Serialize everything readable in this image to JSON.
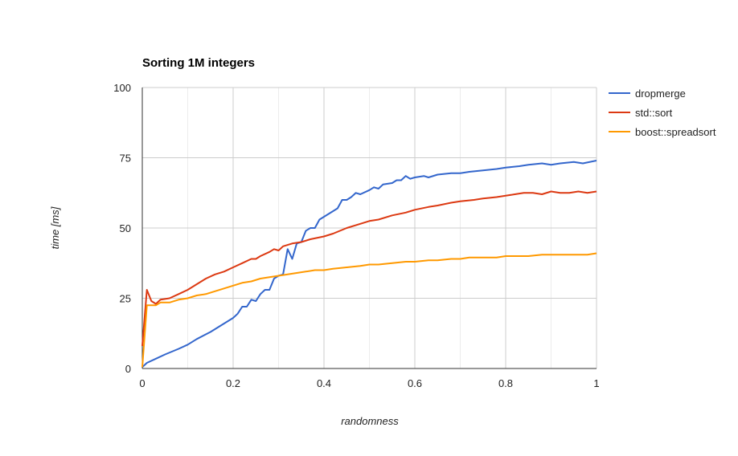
{
  "chart_data": {
    "type": "line",
    "title": "Sorting 1M integers",
    "xlabel": "randomness",
    "ylabel": "time [ms]",
    "xlim": [
      0,
      1
    ],
    "ylim": [
      0,
      100
    ],
    "xticks": [
      0,
      0.2,
      0.4,
      0.6,
      0.8,
      1
    ],
    "xtick_labels": [
      "0",
      "0.2",
      "0.4",
      "0.6",
      "0.8",
      "1"
    ],
    "yticks": [
      0,
      25,
      50,
      75,
      100
    ],
    "ytick_labels": [
      "0",
      "25",
      "50",
      "75",
      "100"
    ],
    "x_minor_ticks": [
      0.1,
      0.3,
      0.5,
      0.7,
      0.9
    ],
    "grid": true,
    "legend_position": "right",
    "series": [
      {
        "name": "dropmerge",
        "color": "#3366cc",
        "points": [
          [
            0,
            0.5
          ],
          [
            0.01,
            2
          ],
          [
            0.03,
            3.5
          ],
          [
            0.05,
            5
          ],
          [
            0.08,
            7
          ],
          [
            0.1,
            8.5
          ],
          [
            0.12,
            10.5
          ],
          [
            0.15,
            13
          ],
          [
            0.18,
            16
          ],
          [
            0.2,
            18
          ],
          [
            0.21,
            19.5
          ],
          [
            0.22,
            22
          ],
          [
            0.23,
            22
          ],
          [
            0.24,
            24.5
          ],
          [
            0.25,
            24
          ],
          [
            0.26,
            26.5
          ],
          [
            0.27,
            28
          ],
          [
            0.28,
            28
          ],
          [
            0.29,
            32
          ],
          [
            0.3,
            33
          ],
          [
            0.31,
            33.5
          ],
          [
            0.32,
            42.5
          ],
          [
            0.33,
            39
          ],
          [
            0.34,
            44.5
          ],
          [
            0.35,
            45
          ],
          [
            0.36,
            49
          ],
          [
            0.37,
            50
          ],
          [
            0.38,
            50
          ],
          [
            0.39,
            53
          ],
          [
            0.4,
            54
          ],
          [
            0.42,
            56
          ],
          [
            0.43,
            57
          ],
          [
            0.44,
            60
          ],
          [
            0.45,
            60
          ],
          [
            0.46,
            61
          ],
          [
            0.47,
            62.5
          ],
          [
            0.48,
            62
          ],
          [
            0.5,
            63.5
          ],
          [
            0.51,
            64.5
          ],
          [
            0.52,
            64
          ],
          [
            0.53,
            65.5
          ],
          [
            0.55,
            66
          ],
          [
            0.56,
            67
          ],
          [
            0.57,
            67
          ],
          [
            0.58,
            68.5
          ],
          [
            0.59,
            67.5
          ],
          [
            0.6,
            68
          ],
          [
            0.62,
            68.5
          ],
          [
            0.63,
            68
          ],
          [
            0.65,
            69
          ],
          [
            0.68,
            69.5
          ],
          [
            0.7,
            69.5
          ],
          [
            0.72,
            70
          ],
          [
            0.75,
            70.5
          ],
          [
            0.78,
            71
          ],
          [
            0.8,
            71.5
          ],
          [
            0.83,
            72
          ],
          [
            0.85,
            72.5
          ],
          [
            0.88,
            73
          ],
          [
            0.9,
            72.5
          ],
          [
            0.92,
            73
          ],
          [
            0.95,
            73.5
          ],
          [
            0.97,
            73
          ],
          [
            1,
            74
          ]
        ]
      },
      {
        "name": "std::sort",
        "color": "#dc3912",
        "points": [
          [
            0,
            8
          ],
          [
            0.01,
            28
          ],
          [
            0.02,
            24
          ],
          [
            0.03,
            23
          ],
          [
            0.04,
            24.5
          ],
          [
            0.06,
            25
          ],
          [
            0.08,
            26.5
          ],
          [
            0.1,
            28
          ],
          [
            0.12,
            30
          ],
          [
            0.14,
            32
          ],
          [
            0.16,
            33.5
          ],
          [
            0.18,
            34.5
          ],
          [
            0.2,
            36
          ],
          [
            0.22,
            37.5
          ],
          [
            0.24,
            39
          ],
          [
            0.25,
            39
          ],
          [
            0.26,
            40
          ],
          [
            0.28,
            41.5
          ],
          [
            0.29,
            42.5
          ],
          [
            0.3,
            42
          ],
          [
            0.31,
            43.5
          ],
          [
            0.33,
            44.5
          ],
          [
            0.35,
            45
          ],
          [
            0.37,
            46
          ],
          [
            0.4,
            47
          ],
          [
            0.42,
            48
          ],
          [
            0.45,
            50
          ],
          [
            0.48,
            51.5
          ],
          [
            0.5,
            52.5
          ],
          [
            0.52,
            53
          ],
          [
            0.55,
            54.5
          ],
          [
            0.58,
            55.5
          ],
          [
            0.6,
            56.5
          ],
          [
            0.63,
            57.5
          ],
          [
            0.65,
            58
          ],
          [
            0.68,
            59
          ],
          [
            0.7,
            59.5
          ],
          [
            0.73,
            60
          ],
          [
            0.75,
            60.5
          ],
          [
            0.78,
            61
          ],
          [
            0.8,
            61.5
          ],
          [
            0.82,
            62
          ],
          [
            0.84,
            62.5
          ],
          [
            0.86,
            62.5
          ],
          [
            0.88,
            62
          ],
          [
            0.9,
            63
          ],
          [
            0.92,
            62.5
          ],
          [
            0.94,
            62.5
          ],
          [
            0.96,
            63
          ],
          [
            0.98,
            62.5
          ],
          [
            1,
            63
          ]
        ]
      },
      {
        "name": "boost::spreadsort",
        "color": "#ff9900",
        "points": [
          [
            0,
            0.5
          ],
          [
            0.01,
            22.5
          ],
          [
            0.02,
            22.5
          ],
          [
            0.03,
            22.5
          ],
          [
            0.04,
            23.5
          ],
          [
            0.06,
            23.5
          ],
          [
            0.08,
            24.5
          ],
          [
            0.1,
            25
          ],
          [
            0.12,
            26
          ],
          [
            0.14,
            26.5
          ],
          [
            0.16,
            27.5
          ],
          [
            0.18,
            28.5
          ],
          [
            0.2,
            29.5
          ],
          [
            0.22,
            30.5
          ],
          [
            0.24,
            31
          ],
          [
            0.26,
            32
          ],
          [
            0.28,
            32.5
          ],
          [
            0.3,
            33
          ],
          [
            0.32,
            33.5
          ],
          [
            0.34,
            34
          ],
          [
            0.36,
            34.5
          ],
          [
            0.38,
            35
          ],
          [
            0.4,
            35
          ],
          [
            0.42,
            35.5
          ],
          [
            0.45,
            36
          ],
          [
            0.48,
            36.5
          ],
          [
            0.5,
            37
          ],
          [
            0.52,
            37
          ],
          [
            0.55,
            37.5
          ],
          [
            0.58,
            38
          ],
          [
            0.6,
            38
          ],
          [
            0.63,
            38.5
          ],
          [
            0.65,
            38.5
          ],
          [
            0.68,
            39
          ],
          [
            0.7,
            39
          ],
          [
            0.72,
            39.5
          ],
          [
            0.75,
            39.5
          ],
          [
            0.78,
            39.5
          ],
          [
            0.8,
            40
          ],
          [
            0.83,
            40
          ],
          [
            0.85,
            40
          ],
          [
            0.88,
            40.5
          ],
          [
            0.9,
            40.5
          ],
          [
            0.92,
            40.5
          ],
          [
            0.95,
            40.5
          ],
          [
            0.98,
            40.5
          ],
          [
            1,
            41
          ]
        ]
      }
    ]
  }
}
